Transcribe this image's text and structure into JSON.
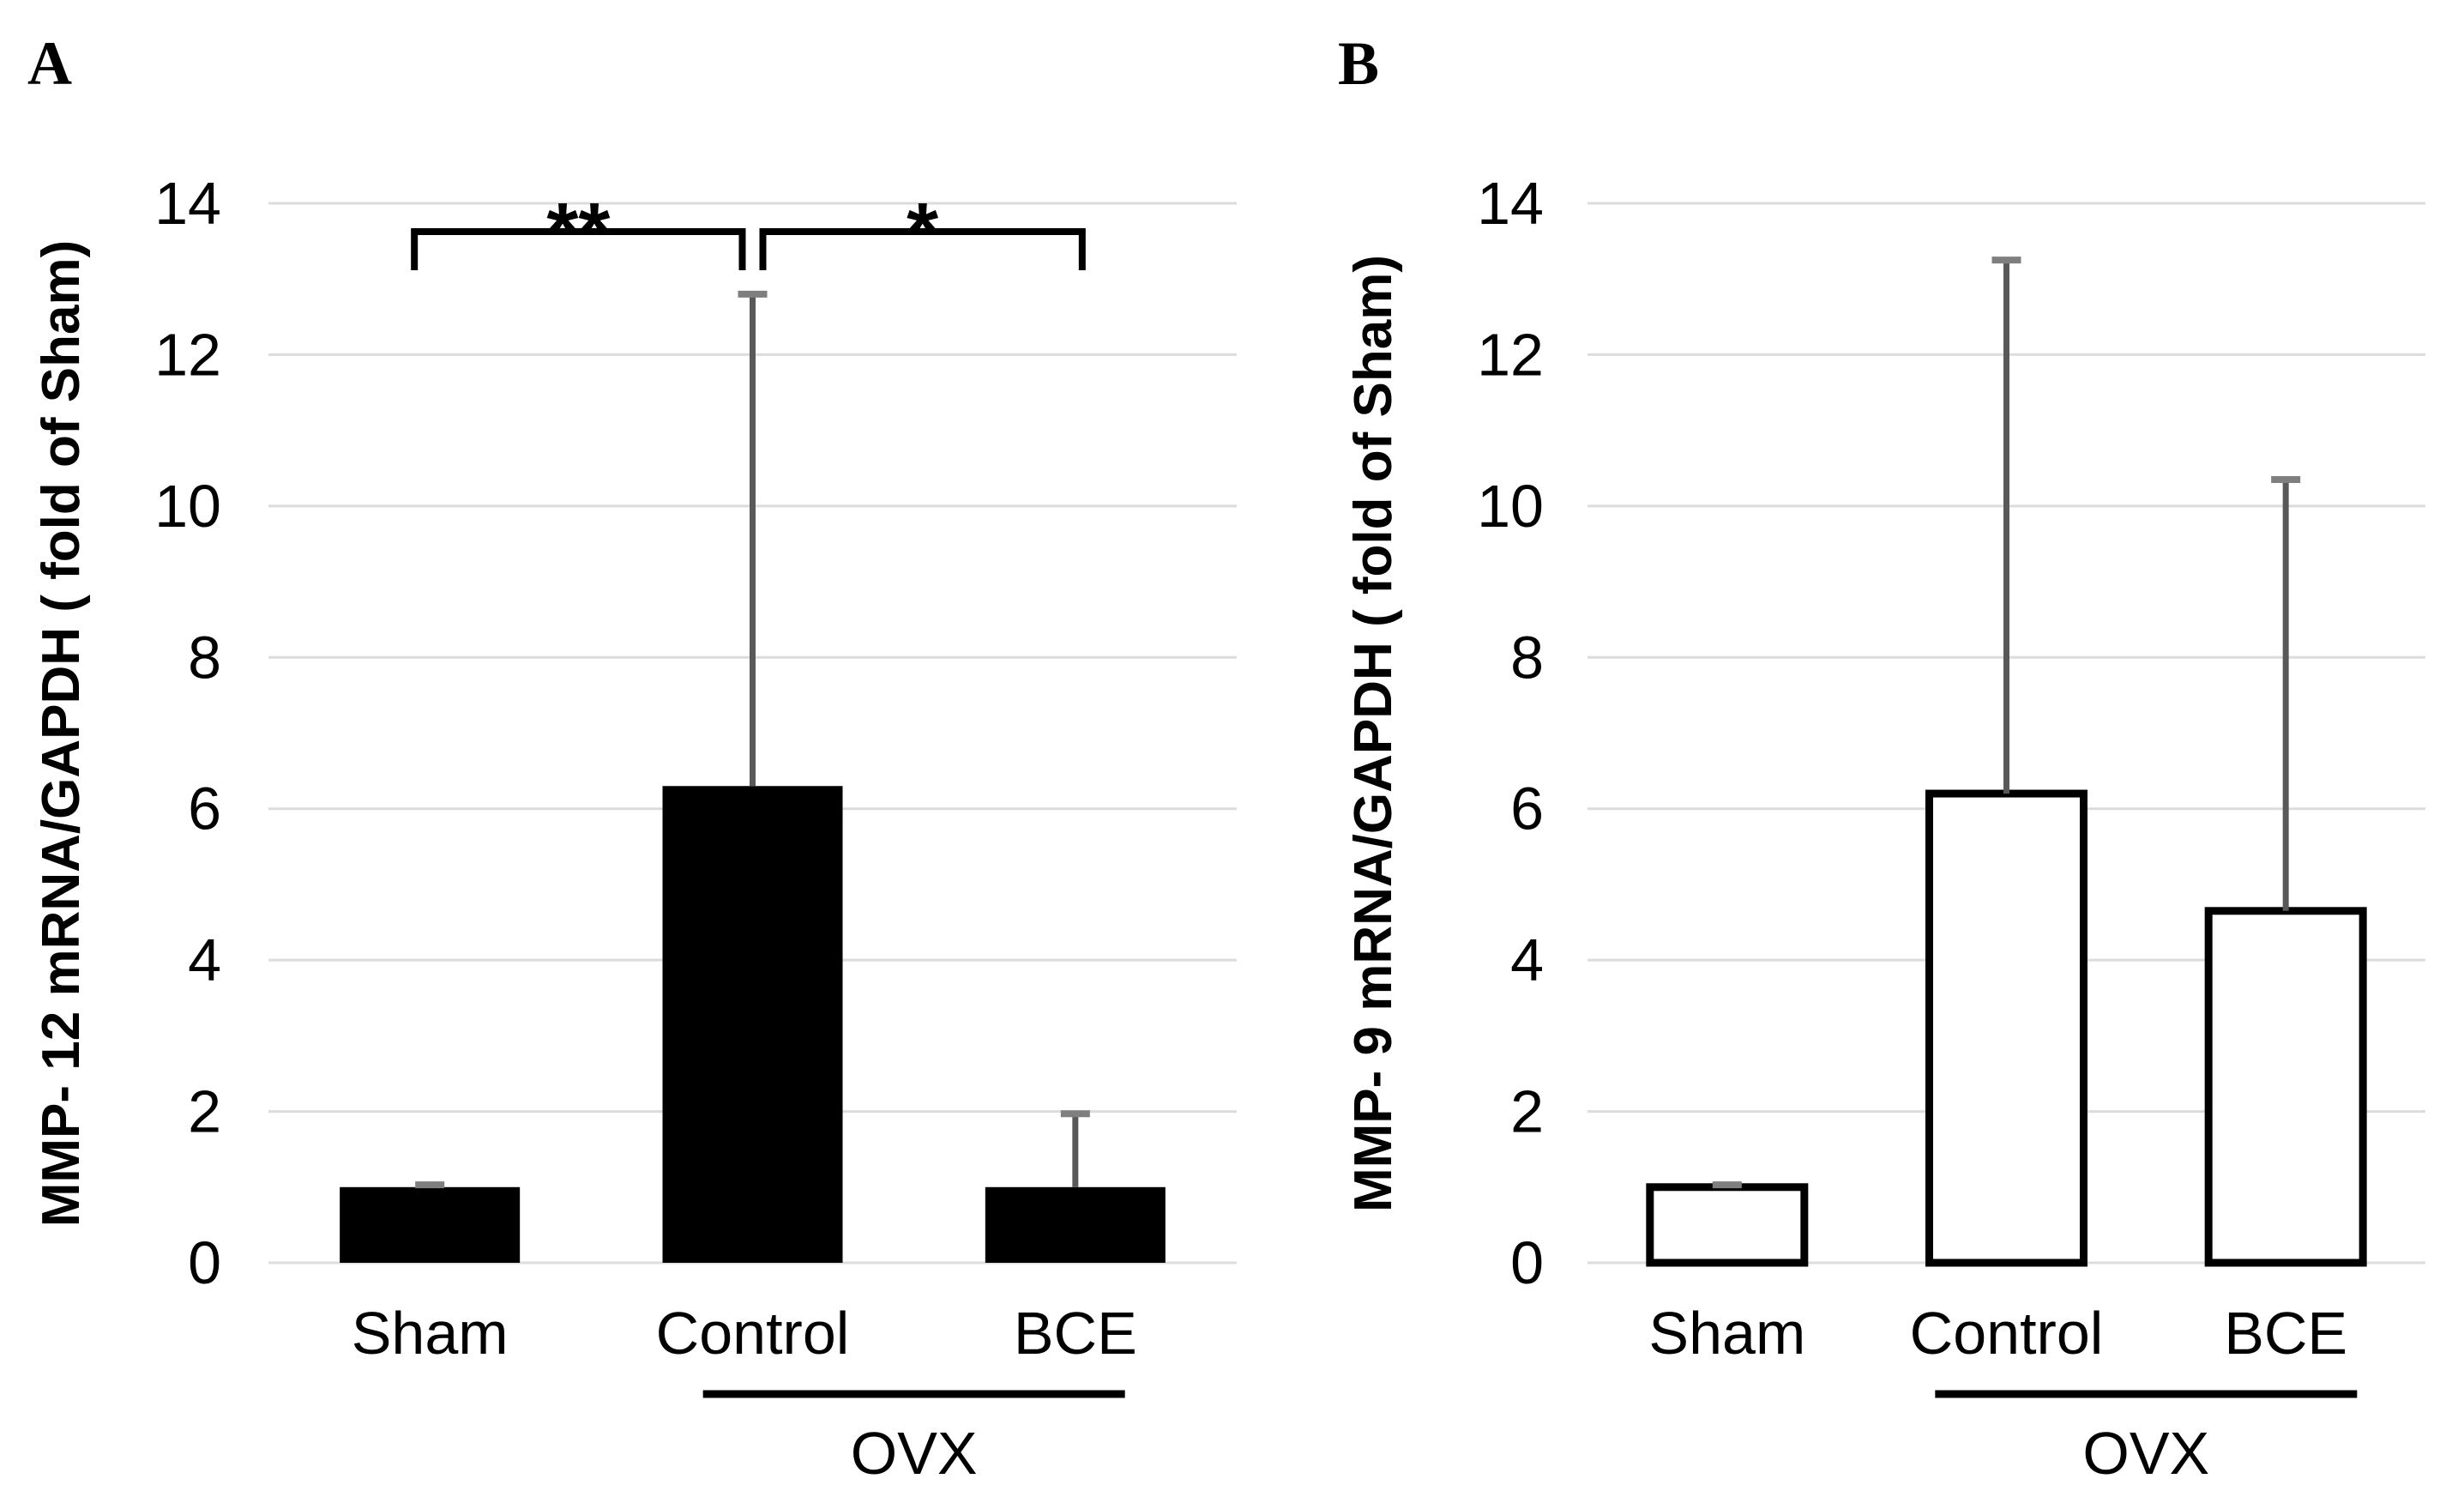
{
  "figure": {
    "background": "#ffffff",
    "colors": {
      "gridline": "#dcdcdc",
      "error_bar": "#595959",
      "error_cap": "#7f7f7f",
      "bar_black": "#000000",
      "bar_white": "#ffffff",
      "bar_outline": "#000000",
      "text": "#000000"
    }
  },
  "chart_data": [
    {
      "panel": "A",
      "type": "bar",
      "title": "",
      "xlabel": "",
      "ylabel": "MMP- 12 mRNA/GAPDH ( fold of Sham)",
      "categories": [
        "Sham",
        "Control",
        "BCE"
      ],
      "values": [
        1.0,
        6.3,
        1.0
      ],
      "errors_upper": [
        0.03,
        6.5,
        0.97
      ],
      "ylim": [
        0,
        14
      ],
      "yticks": [
        0,
        2,
        4,
        6,
        8,
        10,
        12,
        14
      ],
      "grid": true,
      "legend": "none",
      "bar_fill": "#000000",
      "bar_stroke": "#000000",
      "bar_stroke_width": 0,
      "group_annotation": {
        "label": "OVX",
        "from": "Control",
        "to": "BCE"
      },
      "significance_brackets": [
        {
          "from": "Sham",
          "to": "Control",
          "label": "**"
        },
        {
          "from": "Control",
          "to": "BCE",
          "label": "*"
        }
      ]
    },
    {
      "panel": "B",
      "type": "bar",
      "title": "",
      "xlabel": "",
      "ylabel": "MMP- 9 mRNA/GAPDH ( fold of Sham)",
      "categories": [
        "Sham",
        "Control",
        "BCE"
      ],
      "values": [
        1.0,
        6.2,
        4.65
      ],
      "errors_upper": [
        0.03,
        7.05,
        5.7
      ],
      "ylim": [
        0,
        14
      ],
      "yticks": [
        0,
        2,
        4,
        6,
        8,
        10,
        12,
        14
      ],
      "grid": true,
      "legend": "none",
      "bar_fill": "#ffffff",
      "bar_stroke": "#000000",
      "bar_stroke_width": 9,
      "group_annotation": {
        "label": "OVX",
        "from": "Control",
        "to": "BCE"
      },
      "significance_brackets": []
    }
  ]
}
